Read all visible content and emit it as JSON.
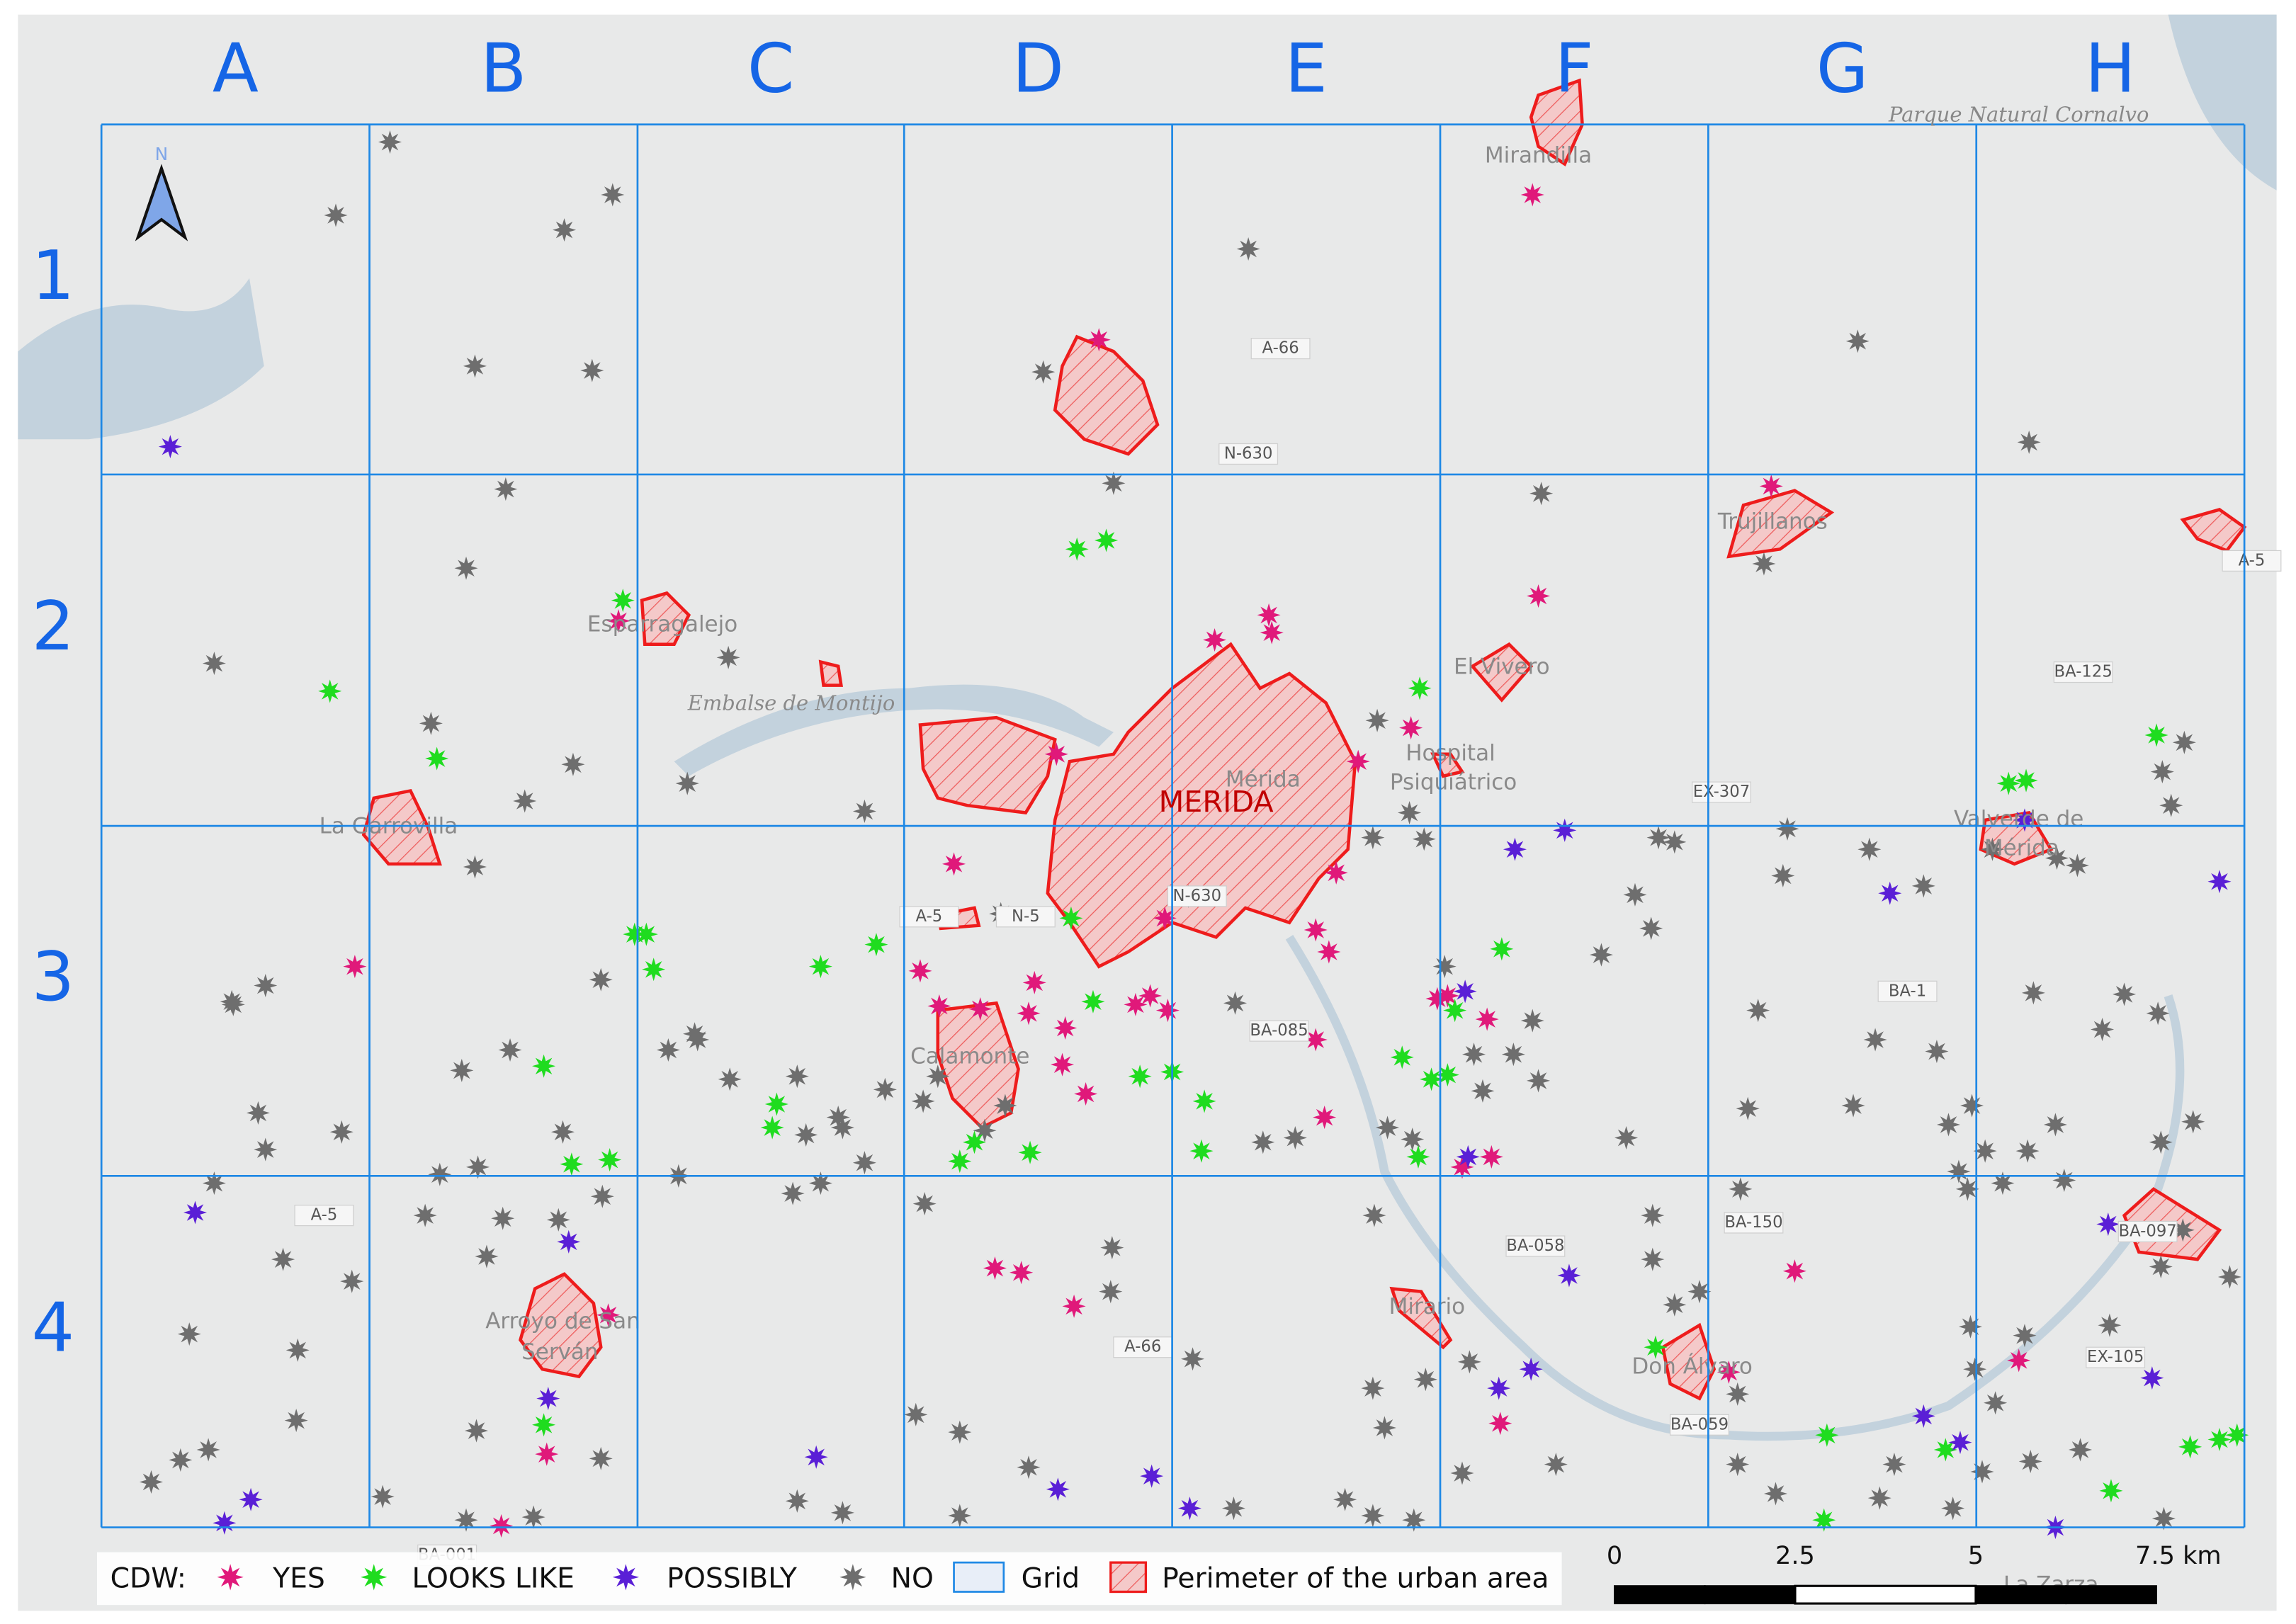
{
  "map": {
    "columns": [
      "A",
      "B",
      "C",
      "D",
      "E",
      "F",
      "G",
      "H"
    ],
    "rows": [
      "1",
      "2",
      "3",
      "4"
    ],
    "north": "N",
    "city": "MERIDA",
    "park": "Parque Natural Cornalvo",
    "places": [
      "Mirandilla",
      "Trujillanos",
      "El Vivero",
      "Hospital",
      "Psiquiátrico",
      "Mérida",
      "Esparragalejo",
      "Embalse de Montijo",
      "La Garrovilla",
      "Calamonte",
      "Arroyo de San",
      "Serván",
      "Valverde de",
      "Mérida",
      "Mirario",
      "Don Álvaro",
      "La Zarza"
    ],
    "roads": [
      "A-66",
      "N-630",
      "A-5",
      "BA-125",
      "EX-307",
      "N-630",
      "A-5",
      "N-5",
      "BA-085",
      "A-5",
      "BA-058",
      "BA-150",
      "BA-097",
      "EX-105",
      "A-66",
      "BA-059",
      "BA-001",
      "BA-1"
    ],
    "legend": {
      "title": "CDW:",
      "items": [
        {
          "label": "YES",
          "color": "#e0197a"
        },
        {
          "label": "LOOKS LIKE",
          "color": "#1fdc1f"
        },
        {
          "label": "POSSIBLY",
          "color": "#5a1fd6"
        },
        {
          "label": "NO",
          "color": "#6e6e6e"
        },
        {
          "label": "Grid",
          "color": "#1e88e5"
        },
        {
          "label": "Perimeter of the urban area",
          "color": "#ee1c1c"
        }
      ]
    },
    "scale": [
      "0",
      "2.5",
      "5",
      "7.5 km"
    ]
  }
}
